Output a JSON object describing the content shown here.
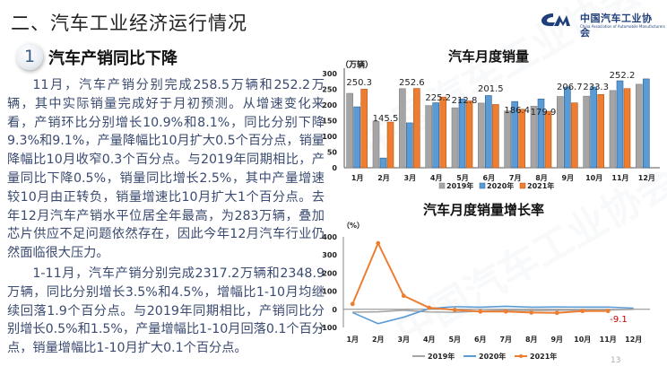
{
  "header": {
    "section_title": "二、汽车工业经济运行情况",
    "logo_cn": "中国汽车工业协会",
    "logo_en": "China Association of Automobile Manufacturers"
  },
  "subsection": {
    "number": "1",
    "title": "汽车产销同比下降"
  },
  "body": {
    "paragraphs": [
      "11月，汽车产销分别完成258.5万辆和252.2万辆，其中实际销量完成好于月初预测。从增速变化来看，产销环比分别增长10.9%和8.1%，同比分别下降9.3%和9.1%，产量降幅比10月扩大0.5个百分点，销量降幅比10月收窄0.3个百分点。与2019年同期相比，产量同比下降0.5%，销量同比增长2.5%，其中产量增速较10月由正转负，销量增速比10月扩大1个百分点。去年12月汽车产销水平位居全年最高，为283万辆，叠加芯片供应不足问题依然存在，因此今年12月汽车行业仍然面临很大压力。",
      "1-11月，汽车产销分别完成2317.2万辆和2348.9万辆，同比分别增长3.5%和4.5%，增幅比1-10月均继续回落1.9个百分点。与2019年同期相比，产销同比分别增长0.5%和1.5%，产量增幅比1-10月回落0.1个百分点，销量增幅比1-10月扩大0.1个百分点。"
    ]
  },
  "page_number": "13",
  "colors": {
    "s2019": "#a5a5a5",
    "s2020": "#5b9bd5",
    "s2021": "#ed7d31",
    "label_red": "#c00000",
    "brand": "#1f3f7a"
  },
  "chart_data": [
    {
      "type": "bar",
      "title": "汽车月度销量",
      "ylabel": "（万辆）",
      "xlabel": "",
      "categories": [
        "1月",
        "2月",
        "3月",
        "4月",
        "5月",
        "6月",
        "7月",
        "8月",
        "9月",
        "10月",
        "11月",
        "12月"
      ],
      "yticks": [
        "0",
        "50",
        "100",
        "150",
        "200",
        "250",
        "300"
      ],
      "ylim": [
        0,
        300
      ],
      "grid": false,
      "legend_position": "bottom",
      "series": [
        {
          "name": "2019年",
          "values": [
            237,
            148,
            252,
            198,
            191,
            206,
            181,
            196,
            227,
            228,
            246,
            266
          ]
        },
        {
          "name": "2020年",
          "values": [
            194,
            31,
            143,
            207,
            219,
            230,
            211,
            219,
            257,
            257,
            277,
            283
          ]
        },
        {
          "name": "2021年",
          "values": [
            250.3,
            145.5,
            252.6,
            225.2,
            212.8,
            201.5,
            186.4,
            179.9,
            206.7,
            233.3,
            252.2,
            null
          ]
        }
      ],
      "data_labels": [
        "250.3",
        "145.5",
        "252.6",
        "225.2",
        "212.8",
        "201.5",
        "186.4",
        "179.9",
        "206.7",
        "233.3",
        "252.2"
      ]
    },
    {
      "type": "line",
      "title": "汽车月度销量增长率",
      "ylabel": "（%）",
      "xlabel": "",
      "categories": [
        "1月",
        "2月",
        "3月",
        "4月",
        "5月",
        "6月",
        "7月",
        "8月",
        "9月",
        "10月",
        "11月",
        "12月"
      ],
      "yticks": [
        "-100",
        "0",
        "100",
        "200",
        "300",
        "400"
      ],
      "ylim": [
        -100,
        400
      ],
      "grid": false,
      "legend_position": "bottom",
      "series": [
        {
          "name": "2019年",
          "values": [
            -15.8,
            -13.8,
            -5.2,
            -14.6,
            -16.4,
            -9.6,
            -4.3,
            -6.9,
            -5.2,
            -4.0,
            -3.6,
            0
          ]
        },
        {
          "name": "2020年",
          "values": [
            -18.0,
            -79.1,
            -43.3,
            4.4,
            14.5,
            11.6,
            16.4,
            11.6,
            12.8,
            12.5,
            12.6,
            6.4
          ]
        },
        {
          "name": "2021年",
          "values": [
            29.5,
            364.8,
            74.9,
            8.6,
            -3.1,
            -12.4,
            -11.9,
            -17.8,
            -19.6,
            -9.4,
            -9.1,
            null
          ]
        }
      ],
      "annotation": "-9.1"
    }
  ]
}
